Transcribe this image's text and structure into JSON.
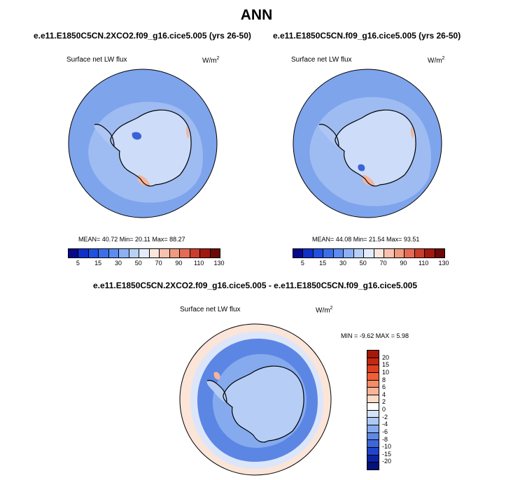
{
  "page_title": "ANN",
  "panels": [
    {
      "title": "e.e11.E1850C5CN.2XCO2.f09_g16.cice5.005 (yrs 26-50)",
      "variable": "Surface net LW flux",
      "units": "W/m",
      "units_sup": "2",
      "stats": "MEAN=  40.72  Min=  20.11  Max=  88.27"
    },
    {
      "title": "e.e11.E1850C5CN.f09_g16.cice5.005 (yrs 26-50)",
      "variable": "Surface net LW flux",
      "units": "W/m",
      "units_sup": "2",
      "stats": "MEAN=  44.08  Min=  21.54  Max=  93.51"
    }
  ],
  "abs_colorbar": {
    "colors": [
      "#08088c",
      "#1030c8",
      "#2050e0",
      "#3c6ee8",
      "#5c8cf0",
      "#8cb0f4",
      "#b8d0f8",
      "#e2ecfc",
      "#fce6dc",
      "#f8c2ae",
      "#f09a80",
      "#e46c54",
      "#cc3c2c",
      "#a01810",
      "#6c0806"
    ],
    "tick_labels": [
      "5",
      "15",
      "30",
      "50",
      "70",
      "90",
      "110",
      "130"
    ]
  },
  "diff_panel": {
    "title": "e.e11.E1850C5CN.2XCO2.f09_g16.cice5.005 - e.e11.E1850C5CN.f09_g16.cice5.005",
    "variable": "Surface net LW flux",
    "units": "W/m",
    "units_sup": "2",
    "stats": "MIN =  -9.62 MAX =   5.98"
  },
  "diff_colorbar": {
    "colors": [
      "#a81808",
      "#c42810",
      "#dc4020",
      "#f06038",
      "#f48c68",
      "#f8b498",
      "#fcdcc8",
      "#ffffff",
      "#d4e2fa",
      "#aec8f4",
      "#86aaee",
      "#5e88e6",
      "#3c66dc",
      "#2044cc",
      "#0c22a4",
      "#06107a"
    ],
    "tick_labels": [
      "20",
      "15",
      "10",
      "8",
      "6",
      "4",
      "2",
      "0",
      "-2",
      "-4",
      "-6",
      "-8",
      "-10",
      "-15",
      "-20"
    ]
  },
  "map_colors": {
    "ocean_deep": "#7ea4ec",
    "ocean_mid": "#9ebcf2",
    "land_pale": "#cddcf8",
    "land_mid": "#aec6f4",
    "warm": "#f3b49c",
    "dark_blue": "#3a62d8",
    "diff_mid": "#5c86e4",
    "diff_light": "#b6cef6",
    "diff_pale": "#dce6fa",
    "diff_warm": "#fbe4d8"
  }
}
